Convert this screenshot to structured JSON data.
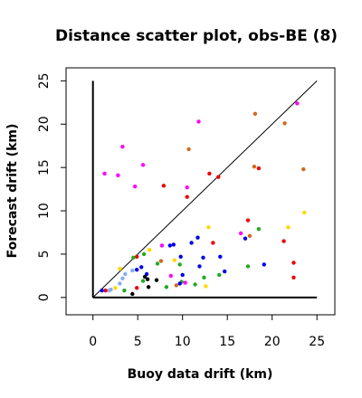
{
  "chart_data": {
    "type": "scatter",
    "title": "Distance scatter plot, obs-BE (8)",
    "xlabel": "Buoy data drift (km)",
    "ylabel": "Forecast drift (km)",
    "xlim": [
      -3,
      27
    ],
    "ylim": [
      -2,
      26.5
    ],
    "xticks": [
      "0",
      "5",
      "10",
      "15",
      "20",
      "25"
    ],
    "yticks": [
      "0",
      "5",
      "10",
      "15",
      "20",
      "25"
    ],
    "xtick_values": [
      0,
      5,
      10,
      15,
      20,
      25
    ],
    "ytick_values": [
      0,
      5,
      10,
      15,
      20,
      25
    ],
    "grid": false,
    "reference_line": [
      [
        0,
        0
      ],
      [
        25,
        25
      ]
    ],
    "axis_lines": {
      "x": [
        0,
        25
      ],
      "y": [
        0,
        25
      ]
    },
    "colors": {
      "magenta": "#ff00ff",
      "red": "#ee0000",
      "chocolate": "#d2691e",
      "blue": "#0000ee",
      "green": "#22aa22",
      "gold": "#ffd700",
      "black": "#000000",
      "lightblue": "#87aeee",
      "axis": "#000000"
    },
    "points": [
      {
        "x": 1.3,
        "y": 14.3,
        "color": "magenta"
      },
      {
        "x": 2.8,
        "y": 14.1,
        "color": "magenta"
      },
      {
        "x": 3.3,
        "y": 17.4,
        "color": "magenta"
      },
      {
        "x": 4.7,
        "y": 12.8,
        "color": "magenta"
      },
      {
        "x": 5.6,
        "y": 15.3,
        "color": "magenta"
      },
      {
        "x": 11.8,
        "y": 20.3,
        "color": "magenta"
      },
      {
        "x": 10.5,
        "y": 12.7,
        "color": "magenta"
      },
      {
        "x": 10.7,
        "y": 17.1,
        "color": "chocolate"
      },
      {
        "x": 18.1,
        "y": 21.2,
        "color": "chocolate"
      },
      {
        "x": 21.4,
        "y": 20.1,
        "color": "chocolate"
      },
      {
        "x": 22.8,
        "y": 22.4,
        "color": "magenta"
      },
      {
        "x": 23.5,
        "y": 14.8,
        "color": "chocolate"
      },
      {
        "x": 18.0,
        "y": 15.1,
        "color": "chocolate"
      },
      {
        "x": 18.5,
        "y": 14.9,
        "color": "red"
      },
      {
        "x": 13.0,
        "y": 14.3,
        "color": "red"
      },
      {
        "x": 14.0,
        "y": 13.9,
        "color": "red"
      },
      {
        "x": 7.9,
        "y": 12.9,
        "color": "red"
      },
      {
        "x": 10.5,
        "y": 11.6,
        "color": "red"
      },
      {
        "x": 23.6,
        "y": 9.8,
        "color": "gold"
      },
      {
        "x": 21.8,
        "y": 8.1,
        "color": "gold"
      },
      {
        "x": 12.9,
        "y": 8.1,
        "color": "gold"
      },
      {
        "x": 17.3,
        "y": 8.9,
        "color": "red"
      },
      {
        "x": 18.5,
        "y": 7.9,
        "color": "green"
      },
      {
        "x": 16.5,
        "y": 7.4,
        "color": "magenta"
      },
      {
        "x": 17.5,
        "y": 7.1,
        "color": "chocolate"
      },
      {
        "x": 17.0,
        "y": 6.8,
        "color": "blue"
      },
      {
        "x": 21.3,
        "y": 6.5,
        "color": "red"
      },
      {
        "x": 11.7,
        "y": 6.9,
        "color": "blue"
      },
      {
        "x": 13.4,
        "y": 6.3,
        "color": "red"
      },
      {
        "x": 11.0,
        "y": 6.3,
        "color": "blue"
      },
      {
        "x": 8.6,
        "y": 6.0,
        "color": "blue"
      },
      {
        "x": 9.0,
        "y": 6.1,
        "color": "blue"
      },
      {
        "x": 7.7,
        "y": 6.0,
        "color": "magenta"
      },
      {
        "x": 6.3,
        "y": 5.5,
        "color": "gold"
      },
      {
        "x": 5.7,
        "y": 5.0,
        "color": "green"
      },
      {
        "x": 4.9,
        "y": 4.7,
        "color": "red"
      },
      {
        "x": 4.5,
        "y": 4.6,
        "color": "green"
      },
      {
        "x": 9.8,
        "y": 4.7,
        "color": "blue"
      },
      {
        "x": 12.3,
        "y": 4.6,
        "color": "blue"
      },
      {
        "x": 14.2,
        "y": 4.7,
        "color": "blue"
      },
      {
        "x": 7.6,
        "y": 4.2,
        "color": "chocolate"
      },
      {
        "x": 7.2,
        "y": 3.9,
        "color": "green"
      },
      {
        "x": 9.1,
        "y": 4.3,
        "color": "gold"
      },
      {
        "x": 9.7,
        "y": 3.8,
        "color": "green"
      },
      {
        "x": 11.9,
        "y": 3.6,
        "color": "blue"
      },
      {
        "x": 14.7,
        "y": 3.0,
        "color": "blue"
      },
      {
        "x": 17.3,
        "y": 3.6,
        "color": "green"
      },
      {
        "x": 19.1,
        "y": 3.8,
        "color": "blue"
      },
      {
        "x": 22.4,
        "y": 4.0,
        "color": "red"
      },
      {
        "x": 22.4,
        "y": 2.3,
        "color": "red"
      },
      {
        "x": 14.1,
        "y": 2.6,
        "color": "green"
      },
      {
        "x": 10.0,
        "y": 2.6,
        "color": "blue"
      },
      {
        "x": 8.7,
        "y": 2.5,
        "color": "magenta"
      },
      {
        "x": 6.0,
        "y": 2.7,
        "color": "blue"
      },
      {
        "x": 5.4,
        "y": 3.5,
        "color": "blue"
      },
      {
        "x": 4.9,
        "y": 3.2,
        "color": "blue"
      },
      {
        "x": 4.4,
        "y": 3.1,
        "color": "lightblue"
      },
      {
        "x": 3.0,
        "y": 3.3,
        "color": "gold"
      },
      {
        "x": 3.6,
        "y": 2.7,
        "color": "lightblue"
      },
      {
        "x": 3.3,
        "y": 2.2,
        "color": "lightblue"
      },
      {
        "x": 3.0,
        "y": 1.6,
        "color": "lightblue"
      },
      {
        "x": 2.5,
        "y": 1.1,
        "color": "gold"
      },
      {
        "x": 2.0,
        "y": 0.9,
        "color": "lightblue"
      },
      {
        "x": 1.8,
        "y": 0.8,
        "color": "lightblue"
      },
      {
        "x": 1.4,
        "y": 0.8,
        "color": "red"
      },
      {
        "x": 1.0,
        "y": 0.8,
        "color": "blue"
      },
      {
        "x": 3.5,
        "y": 0.8,
        "color": "green"
      },
      {
        "x": 4.4,
        "y": 0.4,
        "color": "black"
      },
      {
        "x": 4.9,
        "y": 1.1,
        "color": "red"
      },
      {
        "x": 5.6,
        "y": 1.9,
        "color": "green"
      },
      {
        "x": 6.1,
        "y": 2.1,
        "color": "black"
      },
      {
        "x": 5.8,
        "y": 2.4,
        "color": "black"
      },
      {
        "x": 6.2,
        "y": 1.2,
        "color": "black"
      },
      {
        "x": 7.1,
        "y": 2.0,
        "color": "black"
      },
      {
        "x": 8.2,
        "y": 1.2,
        "color": "green"
      },
      {
        "x": 9.3,
        "y": 1.4,
        "color": "chocolate"
      },
      {
        "x": 9.9,
        "y": 1.8,
        "color": "green"
      },
      {
        "x": 11.4,
        "y": 1.5,
        "color": "green"
      },
      {
        "x": 12.6,
        "y": 1.3,
        "color": "gold"
      },
      {
        "x": 12.4,
        "y": 2.3,
        "color": "green"
      },
      {
        "x": 9.7,
        "y": 1.6,
        "color": "blue"
      },
      {
        "x": 10.3,
        "y": 1.7,
        "color": "magenta"
      }
    ]
  }
}
